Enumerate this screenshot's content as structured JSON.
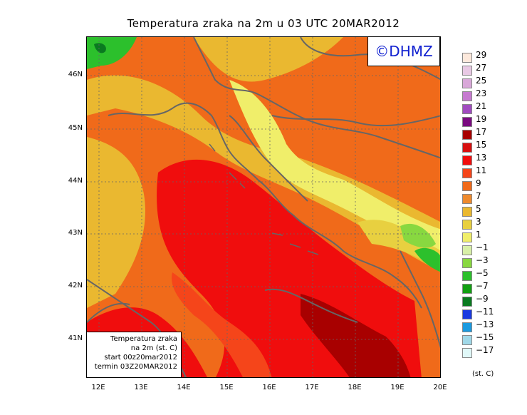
{
  "title": "Temperatura zraka na 2m u 03 UTC 20MAR2012",
  "logo": "©DHMZ",
  "infobox": {
    "line1": "Temperatura zraka",
    "line2": "na 2m (st. C)",
    "line3": "start 00z20mar2012",
    "line4": "termin 03Z20MAR2012"
  },
  "lat_labels": [
    "46N",
    "45N",
    "44N",
    "43N",
    "42N",
    "41N"
  ],
  "lon_labels": [
    "12E",
    "13E",
    "14E",
    "15E",
    "16E",
    "17E",
    "18E",
    "19E",
    "20E"
  ],
  "legend": {
    "labels": [
      "29",
      "27",
      "25",
      "23",
      "21",
      "19",
      "17",
      "15",
      "13",
      "11",
      "9",
      "7",
      "5",
      "3",
      "1",
      "−1",
      "−3",
      "−5",
      "−7",
      "−9",
      "−11",
      "−13",
      "−15",
      "−17"
    ],
    "colors": [
      "#fde9dc",
      "#e8c9e4",
      "#d9a8d9",
      "#c67ad0",
      "#a14bc0",
      "#7a0a80",
      "#a80000",
      "#d81010",
      "#f00d0d",
      "#f5451a",
      "#f06a1a",
      "#ee8a2e",
      "#eab830",
      "#e8d040",
      "#f0ee6a",
      "#d8f0a8",
      "#88d840",
      "#2cc02c",
      "#12a012",
      "#0a7a20",
      "#1a3ae0",
      "#1a9ae0",
      "#a0d8e8",
      "#e0f8f8"
    ],
    "unit": "(st. C)"
  }
}
